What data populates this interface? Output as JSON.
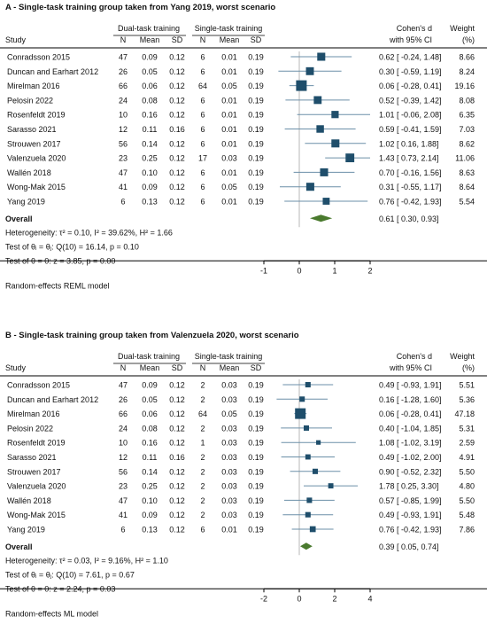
{
  "colors": {
    "marker": "#1f4e6b",
    "diamond": "#4a7a2e",
    "text": "#111111",
    "rule": "#000000",
    "ci": "#6b8fa8"
  },
  "chart_data": [
    {
      "type": "forest",
      "title": "A - Single-task training group taken from Yang 2019, worst scenario",
      "header": {
        "group1": "Dual-task training",
        "group2": "Single-task training",
        "study": "Study",
        "n": "N",
        "mean": "Mean",
        "sd": "SD",
        "effect_line1": "Cohen's d",
        "effect_line2": "with 95% CI",
        "weight_line1": "Weight",
        "weight_line2": "(%)"
      },
      "studies": [
        {
          "name": "Conradsson 2015",
          "n1": "47",
          "m1": "0.09",
          "sd1": "0.12",
          "n2": "6",
          "m2": "0.01",
          "sd2": "0.19",
          "d": 0.62,
          "lo": -0.24,
          "hi": 1.48,
          "ci_text": "0.62 [ -0.24, 1.48]",
          "weight": 8.66,
          "weight_text": "8.66"
        },
        {
          "name": "Duncan and Earhart 2012",
          "n1": "26",
          "m1": "0.05",
          "sd1": "0.12",
          "n2": "6",
          "m2": "0.01",
          "sd2": "0.19",
          "d": 0.3,
          "lo": -0.59,
          "hi": 1.19,
          "ci_text": "0.30 [ -0.59, 1.19]",
          "weight": 8.24,
          "weight_text": "8.24"
        },
        {
          "name": "Mirelman 2016",
          "n1": "66",
          "m1": "0.06",
          "sd1": "0.12",
          "n2": "64",
          "m2": "0.05",
          "sd2": "0.19",
          "d": 0.06,
          "lo": -0.28,
          "hi": 0.41,
          "ci_text": "0.06 [ -0.28, 0.41]",
          "weight": 19.16,
          "weight_text": "19.16"
        },
        {
          "name": "Pelosin 2022",
          "n1": "24",
          "m1": "0.08",
          "sd1": "0.12",
          "n2": "6",
          "m2": "0.01",
          "sd2": "0.19",
          "d": 0.52,
          "lo": -0.39,
          "hi": 1.42,
          "ci_text": "0.52 [ -0.39, 1.42]",
          "weight": 8.08,
          "weight_text": "8.08"
        },
        {
          "name": "Rosenfeldt 2019",
          "n1": "10",
          "m1": "0.16",
          "sd1": "0.12",
          "n2": "6",
          "m2": "0.01",
          "sd2": "0.19",
          "d": 1.01,
          "lo": -0.06,
          "hi": 2.08,
          "ci_text": "1.01 [ -0.06, 2.08]",
          "weight": 6.35,
          "weight_text": "6.35"
        },
        {
          "name": "Sarasso 2021",
          "n1": "12",
          "m1": "0.11",
          "sd1": "0.16",
          "n2": "6",
          "m2": "0.01",
          "sd2": "0.19",
          "d": 0.59,
          "lo": -0.41,
          "hi": 1.59,
          "ci_text": "0.59 [ -0.41, 1.59]",
          "weight": 7.03,
          "weight_text": "7.03"
        },
        {
          "name": "Strouwen 2017",
          "n1": "56",
          "m1": "0.14",
          "sd1": "0.12",
          "n2": "6",
          "m2": "0.01",
          "sd2": "0.19",
          "d": 1.02,
          "lo": 0.16,
          "hi": 1.88,
          "ci_text": "1.02 [  0.16, 1.88]",
          "weight": 8.62,
          "weight_text": "8.62"
        },
        {
          "name": "Valenzuela 2020",
          "n1": "23",
          "m1": "0.25",
          "sd1": "0.12",
          "n2": "17",
          "m2": "0.03",
          "sd2": "0.19",
          "d": 1.43,
          "lo": 0.73,
          "hi": 2.14,
          "ci_text": "1.43 [  0.73, 2.14]",
          "weight": 11.06,
          "weight_text": "11.06"
        },
        {
          "name": "Wallén 2018",
          "n1": "47",
          "m1": "0.10",
          "sd1": "0.12",
          "n2": "6",
          "m2": "0.01",
          "sd2": "0.19",
          "d": 0.7,
          "lo": -0.16,
          "hi": 1.56,
          "ci_text": "0.70 [ -0.16, 1.56]",
          "weight": 8.63,
          "weight_text": "8.63"
        },
        {
          "name": "Wong-Mak 2015",
          "n1": "41",
          "m1": "0.09",
          "sd1": "0.12",
          "n2": "6",
          "m2": "0.05",
          "sd2": "0.19",
          "d": 0.31,
          "lo": -0.55,
          "hi": 1.17,
          "ci_text": "0.31 [ -0.55, 1.17]",
          "weight": 8.64,
          "weight_text": "8.64"
        },
        {
          "name": "Yang 2019",
          "n1": "6",
          "m1": "0.13",
          "sd1": "0.12",
          "n2": "6",
          "m2": "0.01",
          "sd2": "0.19",
          "d": 0.76,
          "lo": -0.42,
          "hi": 1.93,
          "ci_text": "0.76 [ -0.42, 1.93]",
          "weight": 5.54,
          "weight_text": "5.54"
        }
      ],
      "overall": {
        "label": "Overall",
        "d": 0.61,
        "lo": 0.3,
        "hi": 0.93,
        "ci_text": "0.61 [  0.30, 0.93]"
      },
      "stats": [
        "Heterogeneity: τ² = 0.10, I² = 39.62%, H² = 1.66",
        "Test of θᵢ = θⱼ: Q(10) = 16.14, p = 0.10",
        "Test of θ = 0: z = 3.85, p = 0.00"
      ],
      "model_note": "Random-effects REML model",
      "xlim": [
        -1,
        2
      ],
      "xticks": [
        -1,
        0,
        1,
        2
      ],
      "xtick_labels": [
        "-1",
        "0",
        "1",
        "2"
      ]
    },
    {
      "type": "forest",
      "title": "B - Single-task training group taken from Valenzuela 2020, worst scenario",
      "header": {
        "group1": "Dual-task training",
        "group2": "Single-task training",
        "study": "Study",
        "n": "N",
        "mean": "Mean",
        "sd": "SD",
        "effect_line1": "Cohen's d",
        "effect_line2": "with 95% CI",
        "weight_line1": "Weight",
        "weight_line2": "(%)"
      },
      "studies": [
        {
          "name": "Conradsson 2015",
          "n1": "47",
          "m1": "0.09",
          "sd1": "0.12",
          "n2": "2",
          "m2": "0.03",
          "sd2": "0.19",
          "d": 0.49,
          "lo": -0.93,
          "hi": 1.91,
          "ci_text": "0.49 [ -0.93, 1.91]",
          "weight": 5.51,
          "weight_text": "5.51"
        },
        {
          "name": "Duncan and Earhart 2012",
          "n1": "26",
          "m1": "0.05",
          "sd1": "0.12",
          "n2": "2",
          "m2": "0.03",
          "sd2": "0.19",
          "d": 0.16,
          "lo": -1.28,
          "hi": 1.6,
          "ci_text": "0.16 [ -1.28, 1.60]",
          "weight": 5.36,
          "weight_text": "5.36"
        },
        {
          "name": "Mirelman 2016",
          "n1": "66",
          "m1": "0.06",
          "sd1": "0.12",
          "n2": "64",
          "m2": "0.05",
          "sd2": "0.19",
          "d": 0.06,
          "lo": -0.28,
          "hi": 0.41,
          "ci_text": "0.06 [ -0.28, 0.41]",
          "weight": 47.18,
          "weight_text": "47.18"
        },
        {
          "name": "Pelosin 2022",
          "n1": "24",
          "m1": "0.08",
          "sd1": "0.12",
          "n2": "2",
          "m2": "0.03",
          "sd2": "0.19",
          "d": 0.4,
          "lo": -1.04,
          "hi": 1.85,
          "ci_text": "0.40 [ -1.04, 1.85]",
          "weight": 5.31,
          "weight_text": "5.31"
        },
        {
          "name": "Rosenfeldt 2019",
          "n1": "10",
          "m1": "0.16",
          "sd1": "0.12",
          "n2": "1",
          "m2": "0.03",
          "sd2": "0.19",
          "d": 1.08,
          "lo": -1.02,
          "hi": 3.19,
          "ci_text": "1.08 [ -1.02, 3.19]",
          "weight": 2.59,
          "weight_text": "2.59"
        },
        {
          "name": "Sarasso 2021",
          "n1": "12",
          "m1": "0.11",
          "sd1": "0.16",
          "n2": "2",
          "m2": "0.03",
          "sd2": "0.19",
          "d": 0.49,
          "lo": -1.02,
          "hi": 2.0,
          "ci_text": "0.49 [ -1.02, 2.00]",
          "weight": 4.91,
          "weight_text": "4.91"
        },
        {
          "name": "Strouwen 2017",
          "n1": "56",
          "m1": "0.14",
          "sd1": "0.12",
          "n2": "2",
          "m2": "0.03",
          "sd2": "0.19",
          "d": 0.9,
          "lo": -0.52,
          "hi": 2.32,
          "ci_text": "0.90 [ -0.52, 2.32]",
          "weight": 5.5,
          "weight_text": "5.50"
        },
        {
          "name": "Valenzuela 2020",
          "n1": "23",
          "m1": "0.25",
          "sd1": "0.12",
          "n2": "2",
          "m2": "0.03",
          "sd2": "0.19",
          "d": 1.78,
          "lo": 0.25,
          "hi": 3.3,
          "ci_text": "1.78 [  0.25, 3.30]",
          "weight": 4.8,
          "weight_text": "4.80"
        },
        {
          "name": "Wallén 2018",
          "n1": "47",
          "m1": "0.10",
          "sd1": "0.12",
          "n2": "2",
          "m2": "0.03",
          "sd2": "0.19",
          "d": 0.57,
          "lo": -0.85,
          "hi": 1.99,
          "ci_text": "0.57 [ -0.85, 1.99]",
          "weight": 5.5,
          "weight_text": "5.50"
        },
        {
          "name": "Wong-Mak 2015",
          "n1": "41",
          "m1": "0.09",
          "sd1": "0.12",
          "n2": "2",
          "m2": "0.03",
          "sd2": "0.19",
          "d": 0.49,
          "lo": -0.93,
          "hi": 1.91,
          "ci_text": "0.49 [ -0.93, 1.91]",
          "weight": 5.48,
          "weight_text": "5.48"
        },
        {
          "name": "Yang 2019",
          "n1": "6",
          "m1": "0.13",
          "sd1": "0.12",
          "n2": "6",
          "m2": "0.01",
          "sd2": "0.19",
          "d": 0.76,
          "lo": -0.42,
          "hi": 1.93,
          "ci_text": "0.76 [ -0.42, 1.93]",
          "weight": 7.86,
          "weight_text": "7.86"
        }
      ],
      "overall": {
        "label": "Overall",
        "d": 0.39,
        "lo": 0.05,
        "hi": 0.74,
        "ci_text": "0.39 [  0.05, 0.74]"
      },
      "stats": [
        "Heterogeneity: τ² = 0.03, I² = 9.16%, H² = 1.10",
        "Test of θᵢ = θⱼ: Q(10) = 7.61, p = 0.67",
        "Test of θ = 0: z = 2.24, p = 0.03"
      ],
      "model_note": "Random-effects ML model",
      "xlim": [
        -2,
        4
      ],
      "xticks": [
        -2,
        0,
        2,
        4
      ],
      "xtick_labels": [
        "-2",
        "0",
        "2",
        "4"
      ]
    }
  ]
}
